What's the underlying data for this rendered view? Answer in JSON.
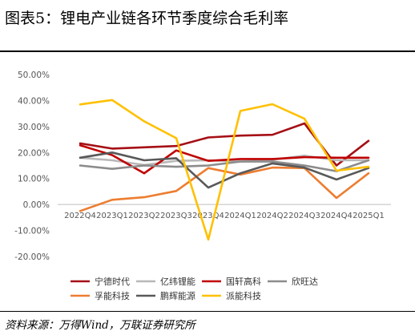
{
  "figure": {
    "title": "图表5：锂电产业链各环节季度综合毛利率",
    "source": "资料来源：万得Wind，万联证券研究所"
  },
  "chart_data": {
    "type": "line",
    "categories": [
      "2022Q4",
      "2023Q1",
      "2023Q2",
      "2023Q3",
      "2023Q4",
      "2024Q1",
      "2024Q2",
      "2024Q3",
      "2024Q4",
      "2025Q1"
    ],
    "y_ticks": [
      "-20.00%",
      "-10.00%",
      "0.00%",
      "10.00%",
      "20.00%",
      "30.00%",
      "40.00%",
      "50.00%"
    ],
    "ylim": [
      -20,
      50
    ],
    "grid": false,
    "legend_position": "bottom",
    "series": [
      {
        "name": "宁德时代",
        "color": "#a50f15",
        "values": [
          23.5,
          21.5,
          22.0,
          22.5,
          25.8,
          26.5,
          26.8,
          31.2,
          15.0,
          24.5
        ]
      },
      {
        "name": "亿纬锂能",
        "color": "#b8b8b8",
        "values": [
          18.0,
          17.0,
          15.2,
          16.8,
          17.0,
          16.5,
          17.2,
          18.8,
          17.0,
          17.0
        ]
      },
      {
        "name": "国轩高科",
        "color": "#c00000",
        "values": [
          22.8,
          19.0,
          12.0,
          20.8,
          16.8,
          17.5,
          17.5,
          18.2,
          18.0,
          18.0
        ]
      },
      {
        "name": "欣旺达",
        "color": "#8c8c8c",
        "values": [
          15.0,
          13.7,
          15.0,
          14.5,
          15.0,
          16.5,
          16.5,
          15.0,
          12.8,
          17.0
        ]
      },
      {
        "name": "孚能科技",
        "color": "#ed7d31",
        "values": [
          -2.5,
          1.8,
          2.8,
          5.2,
          14.0,
          11.5,
          14.2,
          14.0,
          2.5,
          12.0
        ]
      },
      {
        "name": "鹏辉能源",
        "color": "#595959",
        "values": [
          18.0,
          20.0,
          17.0,
          17.8,
          6.5,
          12.0,
          15.8,
          14.2,
          9.6,
          14.0
        ]
      },
      {
        "name": "派能科技",
        "color": "#ffc000",
        "values": [
          38.5,
          40.2,
          32.0,
          25.5,
          -13.5,
          36.0,
          38.6,
          33.0,
          13.0,
          14.5
        ]
      }
    ]
  }
}
